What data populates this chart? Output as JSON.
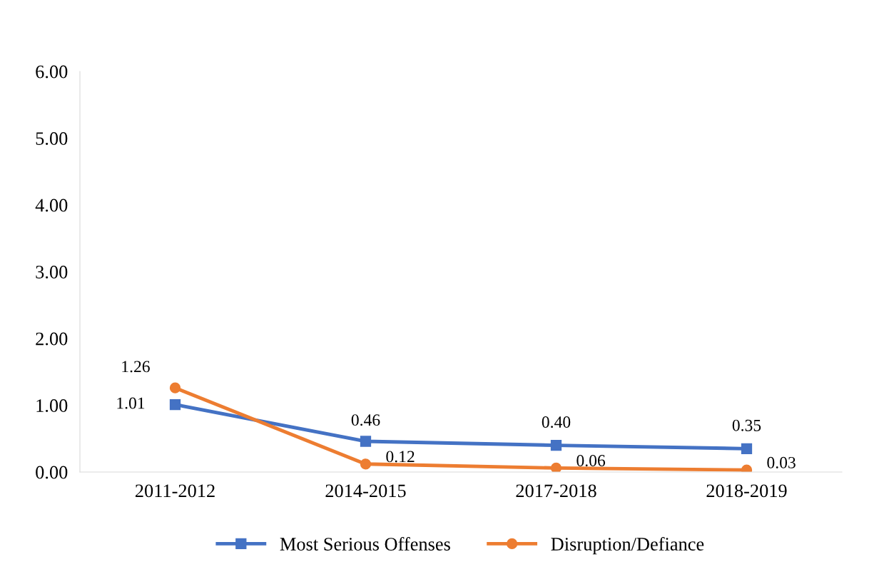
{
  "chart_data": {
    "type": "line",
    "categories": [
      "2011-2012",
      "2014-2015",
      "2017-2018",
      "2018-2019"
    ],
    "series": [
      {
        "name": "Most Serious Offenses",
        "color": "#4472c4",
        "values": [
          1.01,
          0.46,
          0.4,
          0.35
        ],
        "value_labels": [
          "1.01",
          "0.46",
          "0.40",
          "0.35"
        ],
        "marker": "square"
      },
      {
        "name": "Disruption/Defiance",
        "color": "#ed7d31",
        "values": [
          1.26,
          0.12,
          0.06,
          0.03
        ],
        "value_labels": [
          "1.26",
          "0.12",
          "0.06",
          "0.03"
        ],
        "marker": "circle"
      }
    ],
    "ylim": [
      0,
      6
    ],
    "yticks": [
      {
        "value": 0,
        "label": "0.00"
      },
      {
        "value": 1,
        "label": "1.00"
      },
      {
        "value": 2,
        "label": "2.00"
      },
      {
        "value": 3,
        "label": "3.00"
      },
      {
        "value": 4,
        "label": "4.00"
      },
      {
        "value": 5,
        "label": "5.00"
      },
      {
        "value": 6,
        "label": "6.00"
      }
    ],
    "grid": false,
    "legend": "bottom",
    "line_style": "solid"
  }
}
